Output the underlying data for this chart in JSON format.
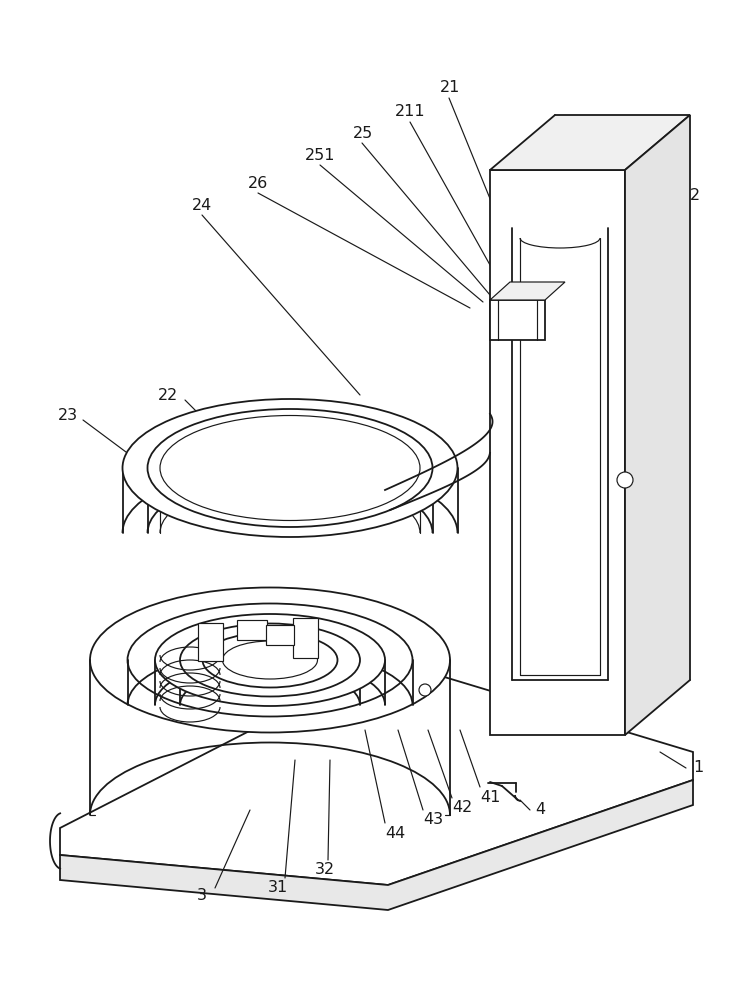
{
  "bg_color": "#ffffff",
  "line_color": "#1a1a1a",
  "lw": 1.3,
  "lw_thin": 0.85,
  "fig_width": 7.55,
  "fig_height": 10.0,
  "label_fs": 11.5
}
